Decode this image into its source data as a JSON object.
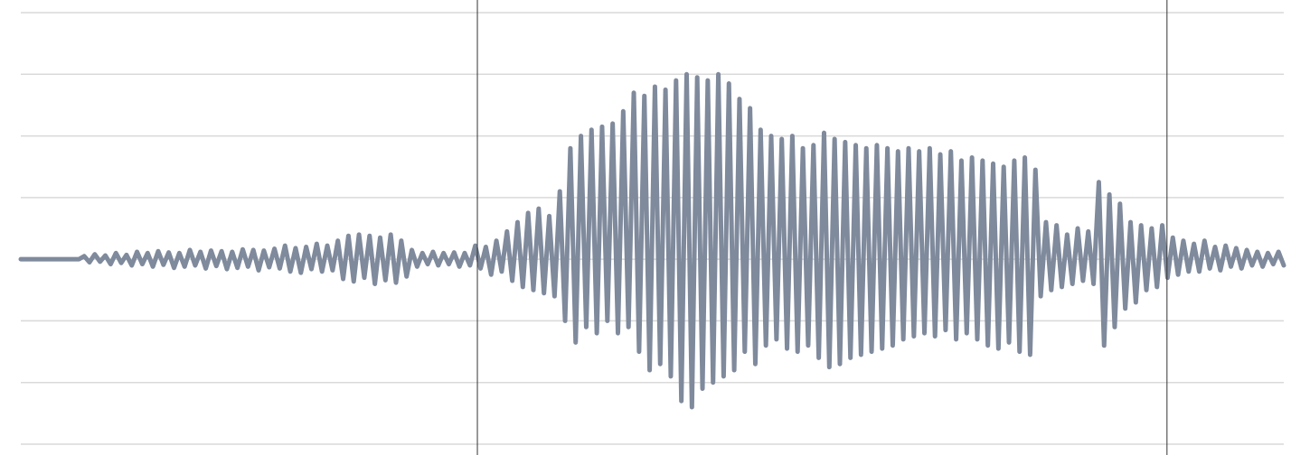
{
  "chart_data": {
    "type": "line",
    "color": "#7f8a9c",
    "grid": true,
    "xlim": [
      0,
      239
    ],
    "ylim": [
      -3,
      4
    ],
    "yticks": [
      -3,
      -2,
      -1,
      0,
      1,
      2,
      3,
      4
    ],
    "markers": [
      86.4,
      216.9
    ],
    "values": [
      0,
      0,
      0,
      0,
      0,
      0,
      0,
      0,
      0,
      0,
      0,
      0,
      0.05,
      -0.05,
      0.08,
      -0.04,
      0.06,
      -0.08,
      0.1,
      -0.06,
      0.07,
      -0.1,
      0.12,
      -0.08,
      0.1,
      -0.12,
      0.13,
      -0.09,
      0.11,
      -0.14,
      0.1,
      -0.12,
      0.15,
      -0.1,
      0.12,
      -0.15,
      0.14,
      -0.11,
      0.13,
      -0.16,
      0.12,
      -0.14,
      0.16,
      -0.12,
      0.15,
      -0.18,
      0.14,
      -0.13,
      0.17,
      -0.15,
      0.22,
      -0.2,
      0.18,
      -0.22,
      0.2,
      -0.16,
      0.25,
      -0.2,
      0.22,
      -0.18,
      0.3,
      -0.32,
      0.38,
      -0.36,
      0.4,
      -0.3,
      0.38,
      -0.4,
      0.35,
      -0.34,
      0.4,
      -0.38,
      0.3,
      -0.28,
      0.15,
      -0.12,
      0.1,
      -0.08,
      0.12,
      -0.1,
      0.1,
      -0.08,
      0.11,
      -0.12,
      0.1,
      -0.1,
      0.22,
      -0.15,
      0.2,
      -0.25,
      0.3,
      -0.2,
      0.45,
      -0.35,
      0.6,
      -0.45,
      0.75,
      -0.5,
      0.82,
      -0.55,
      0.7,
      -0.6,
      1.1,
      -1.0,
      1.8,
      -1.35,
      2.0,
      -1.1,
      2.1,
      -1.2,
      2.15,
      -1.0,
      2.2,
      -1.2,
      2.4,
      -1.1,
      2.7,
      -1.5,
      2.65,
      -1.8,
      2.8,
      -1.7,
      2.75,
      -1.9,
      2.9,
      -2.3,
      3.0,
      -2.4,
      2.95,
      -2.1,
      2.9,
      -2.0,
      3.0,
      -1.9,
      2.85,
      -1.8,
      2.6,
      -1.5,
      2.45,
      -1.7,
      2.1,
      -1.4,
      2.0,
      -1.3,
      1.95,
      -1.45,
      2.0,
      -1.5,
      1.8,
      -1.4,
      1.85,
      -1.6,
      2.05,
      -1.75,
      1.95,
      -1.7,
      1.9,
      -1.6,
      1.85,
      -1.55,
      1.8,
      -1.5,
      1.85,
      -1.45,
      1.8,
      -1.4,
      1.75,
      -1.3,
      1.8,
      -1.25,
      1.75,
      -1.2,
      1.8,
      -1.25,
      1.7,
      -1.15,
      1.75,
      -1.3,
      1.6,
      -1.2,
      1.65,
      -1.3,
      1.6,
      -1.4,
      1.55,
      -1.45,
      1.5,
      -1.35,
      1.6,
      -1.5,
      1.65,
      -1.55,
      1.45,
      -0.6,
      0.6,
      -0.5,
      0.55,
      -0.45,
      0.4,
      -0.4,
      0.5,
      -0.35,
      0.45,
      -0.4,
      1.25,
      -1.4,
      1.05,
      -1.1,
      0.9,
      -0.8,
      0.6,
      -0.7,
      0.55,
      -0.5,
      0.5,
      -0.45,
      0.55,
      -0.3,
      0.35,
      -0.25,
      0.3,
      -0.2,
      0.25,
      -0.2,
      0.3,
      -0.15,
      0.2,
      -0.18,
      0.22,
      -0.12,
      0.18,
      -0.15,
      0.15,
      -0.1,
      0.12,
      -0.12,
      0.1,
      -0.08,
      0.12,
      -0.1
    ]
  }
}
